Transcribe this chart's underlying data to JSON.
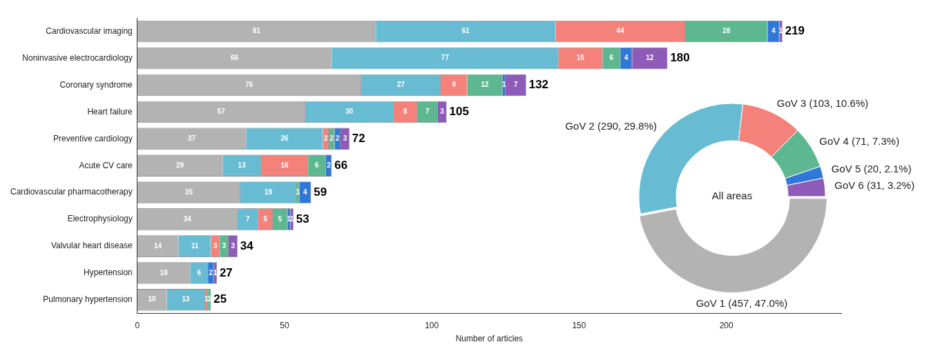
{
  "chart_data": [
    {
      "type": "bar",
      "orientation": "horizontal",
      "stacked": true,
      "xlabel": "Number of articles",
      "categories": [
        "Cardiovascular imaging",
        "Noninvasive electrocardiology",
        "Coronary syndrome",
        "Heart failure",
        "Preventive cardiology",
        "Acute CV care",
        "Cardiovascular pharmacotherapy",
        "Electrophysiology",
        "Valvular heart disease",
        "Hypertension",
        "Pulmonary hypertension"
      ],
      "series": [
        {
          "color": "#b3b3b3",
          "values": [
            81,
            66,
            76,
            57,
            37,
            29,
            35,
            34,
            14,
            18,
            10
          ]
        },
        {
          "color": "#67bcd4",
          "values": [
            61,
            77,
            27,
            30,
            26,
            13,
            19,
            7,
            11,
            6,
            13
          ]
        },
        {
          "color": "#f4817a",
          "values": [
            44,
            15,
            9,
            8,
            2,
            16,
            null,
            5,
            3,
            null,
            1
          ]
        },
        {
          "color": "#5db892",
          "values": [
            28,
            6,
            12,
            7,
            2,
            6,
            1,
            5,
            3,
            null,
            1
          ]
        },
        {
          "color": "#2f78d8",
          "values": [
            4,
            4,
            1,
            null,
            2,
            2,
            4,
            1,
            null,
            2,
            null
          ]
        },
        {
          "color": "#8e5bb8",
          "values": [
            1,
            12,
            7,
            3,
            3,
            null,
            null,
            1,
            3,
            1,
            null
          ]
        }
      ],
      "data_labels": true,
      "totals": [
        "219",
        "180",
        "132",
        "105",
        "72",
        "66",
        "59",
        "53",
        "34",
        "27",
        "25"
      ],
      "xlim": [
        0,
        239
      ],
      "xticks": [
        0,
        50,
        100,
        150,
        200
      ],
      "grid": false,
      "legend": false
    },
    {
      "type": "donut",
      "categories": [
        "GoV 1 (457, 47.0%)",
        "GoV 2 (290, 29.8%)",
        "GoV 3 (103, 10.6%)",
        "GoV 4 (71, 7.3%)",
        "GoV 5 (20, 2.1%)",
        "GoV 6 (31, 3.2%)"
      ],
      "values": [
        457,
        290,
        103,
        71,
        20,
        31
      ],
      "colors": [
        "#b3b3b3",
        "#67bcd4",
        "#f4817a",
        "#5db892",
        "#2f78d8",
        "#8e5bb8"
      ],
      "annotations": [
        "All areas"
      ],
      "legend": false
    }
  ]
}
